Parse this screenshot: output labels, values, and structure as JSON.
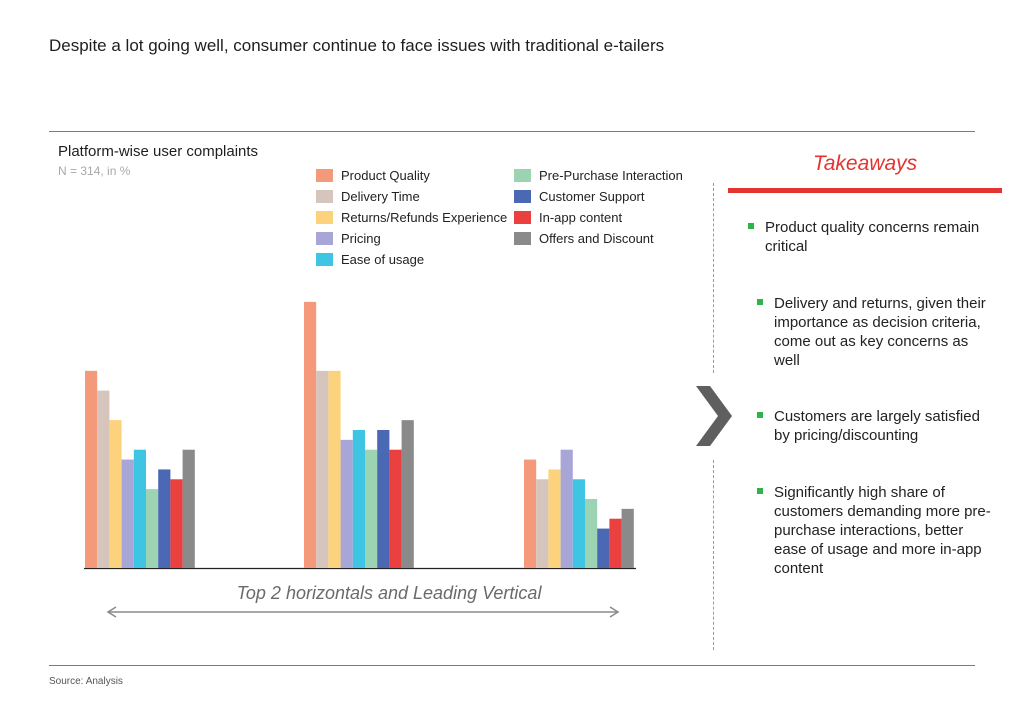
{
  "headline": "Despite a lot going well, consumer continue to face issues with traditional e-tailers",
  "source": "Source: Analysis",
  "chart_data": {
    "type": "bar",
    "title": "Platform-wise user complaints",
    "subtitle": "N = 314, in %",
    "categories": [
      "",
      "",
      ""
    ],
    "xlabel": "Top 2 horizontals and Leading Vertical",
    "ylim": [
      0,
      28
    ],
    "series": [
      {
        "name": "Product Quality",
        "color": "#f4997a",
        "values": [
          20,
          27,
          11
        ]
      },
      {
        "name": "Delivery Time",
        "color": "#d6c5bd",
        "values": [
          18,
          20,
          9
        ]
      },
      {
        "name": "Returns/Refunds Experience",
        "color": "#fdd27c",
        "values": [
          15,
          20,
          10
        ]
      },
      {
        "name": "Pricing",
        "color": "#a7a6d6",
        "values": [
          11,
          13,
          12
        ]
      },
      {
        "name": "Ease of usage",
        "color": "#3ec5e3",
        "values": [
          12,
          14,
          9
        ]
      },
      {
        "name": "Pre-Purchase Interaction",
        "color": "#9bd3b3",
        "values": [
          8,
          12,
          7
        ]
      },
      {
        "name": "Customer Support",
        "color": "#4a68b3",
        "values": [
          10,
          14,
          4
        ]
      },
      {
        "name": "In-app content",
        "color": "#ea4040",
        "values": [
          9,
          12,
          5
        ]
      },
      {
        "name": "Offers and Discount",
        "color": "#8a8a8a",
        "values": [
          12,
          15,
          6
        ]
      }
    ],
    "legend": "top"
  },
  "takeaways": {
    "title": "Takeaways",
    "items": [
      "Product quality concerns remain critical",
      "Delivery and returns, given their importance as decision criteria, come out as key concerns as well",
      "Customers are largely satisfied by pricing/discounting",
      "Significantly high share of customers demanding more pre-purchase interactions, better ease of usage and more in-app content"
    ]
  },
  "colors": {
    "accent": "#e3342f",
    "bullet": "#2fb34a",
    "chevron": "#5f5f5f"
  }
}
